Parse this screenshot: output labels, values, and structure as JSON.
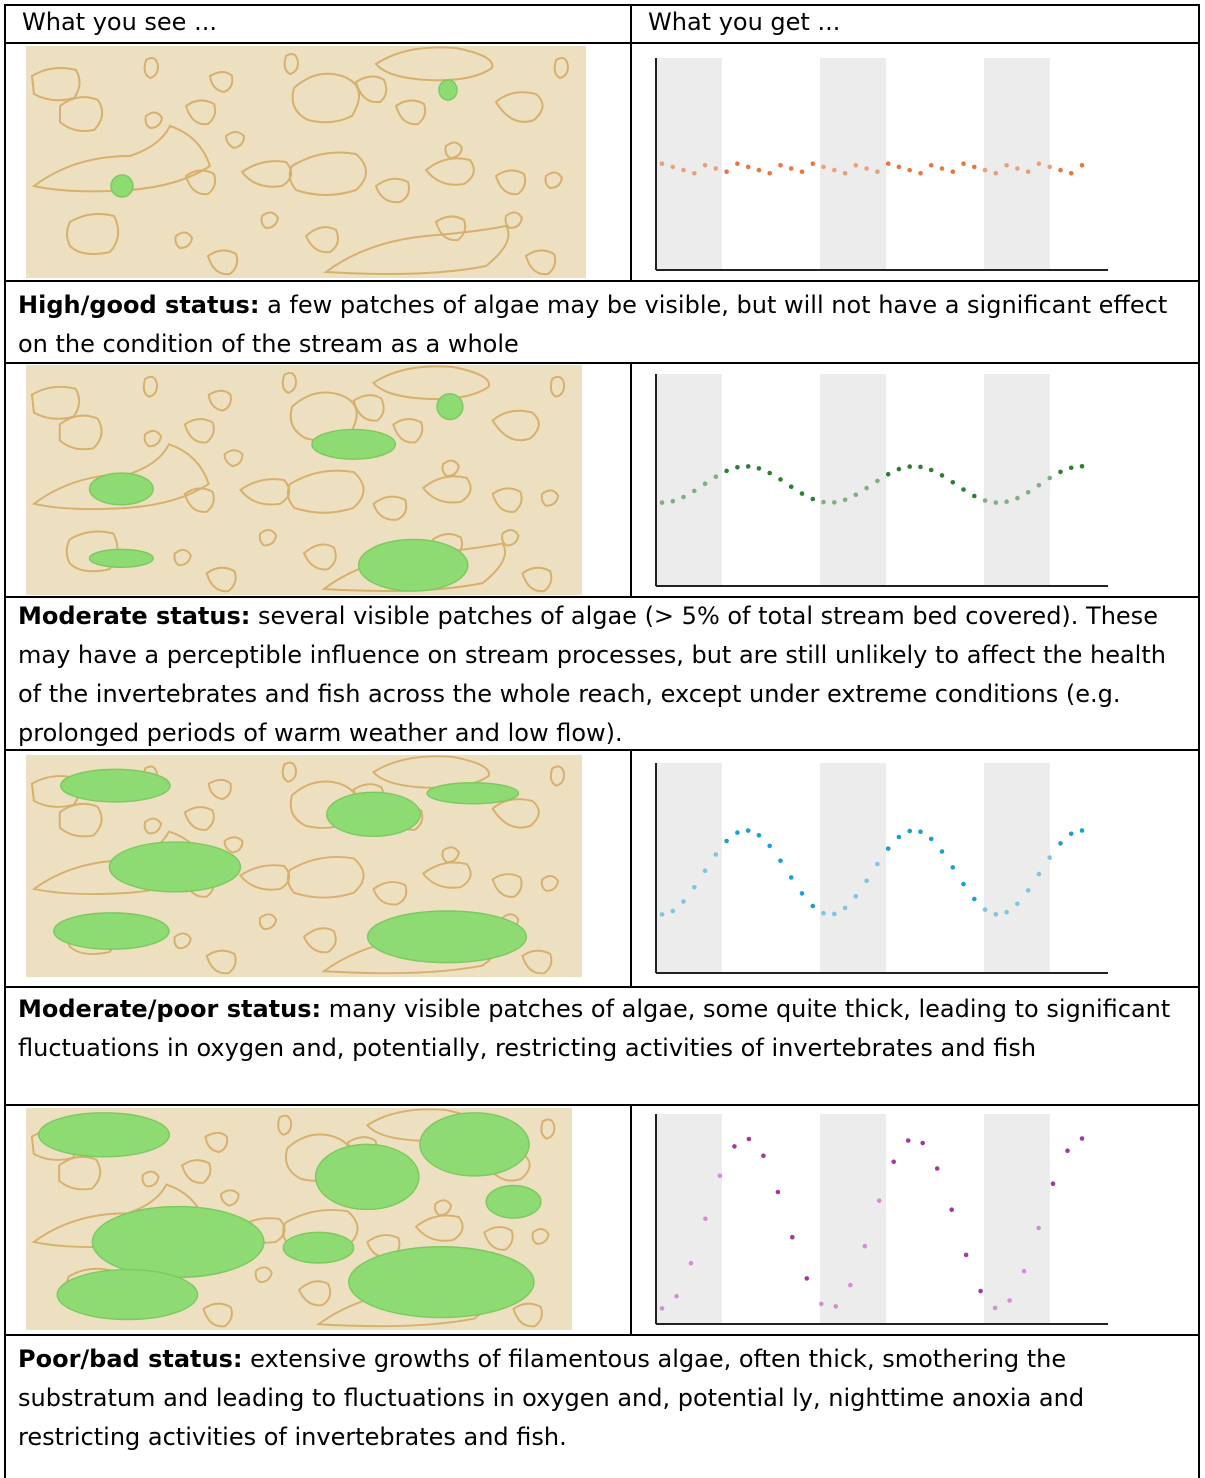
{
  "header": {
    "col1": "What you see ...",
    "col2": "What you get ..."
  },
  "rows": [
    {
      "status_label": "High/good status:",
      "description": " a few patches of algae may be visible, but will not have a significant effect on the condition of the stream as a whole"
    },
    {
      "status_label": "Moderate status:",
      "description": " several visible patches of algae (> 5% of total stream bed covered). These may have a perceptible influence on stream processes, but are still unlikely to affect the health of the invertebrates and fish across the whole reach, except under extreme conditions (e.g. prolonged periods of warm weather and low flow)."
    },
    {
      "status_label": "Moderate/poor status:",
      "description": " many visible patches of algae, some quite thick, leading to significant fluctuations in oxygen and, potentially, restricting activities of invertebrates and fish"
    },
    {
      "status_label": "Poor/bad status:",
      "description": " extensive growths of filamentous algae, often thick, smothering the substratum and leading to fluctuations in oxygen and, potential ly, nighttime anoxia and restricting activities of invertebrates and fish."
    }
  ],
  "colors": {
    "streambed": "#ece0c1",
    "stone_outline": "#d8b06e",
    "algae": "#8edb74",
    "night_band": "#ececec",
    "series": [
      "#e9763a",
      "#2e7d32",
      "#1a9fd0",
      "#a3389d"
    ],
    "series_light": [
      "#e9a07a",
      "#7fae80",
      "#7fc4e0",
      "#d38fcf"
    ]
  },
  "chart_data": [
    {
      "type": "scatter",
      "title": "",
      "xlabel": "",
      "ylabel": "",
      "series": [
        {
          "name": "",
          "amplitude": 0.03,
          "cycles": 2.5,
          "points": 40,
          "noise": true
        }
      ]
    },
    {
      "type": "scatter",
      "title": "",
      "xlabel": "",
      "ylabel": "",
      "series": [
        {
          "name": "",
          "amplitude": 0.18,
          "cycles": 2.5,
          "points": 40,
          "noise": false
        }
      ]
    },
    {
      "type": "scatter",
      "title": "",
      "xlabel": "",
      "ylabel": "",
      "series": [
        {
          "name": "",
          "amplitude": 0.42,
          "cycles": 2.5,
          "points": 40,
          "noise": false
        }
      ]
    },
    {
      "type": "scatter",
      "title": "",
      "xlabel": "",
      "ylabel": "",
      "series": [
        {
          "name": "",
          "amplitude": 0.85,
          "cycles": 2.5,
          "points": 30,
          "noise": false
        }
      ]
    }
  ],
  "icons": [
    "streambed-illustration",
    "algae-patch",
    "stone-outline"
  ]
}
